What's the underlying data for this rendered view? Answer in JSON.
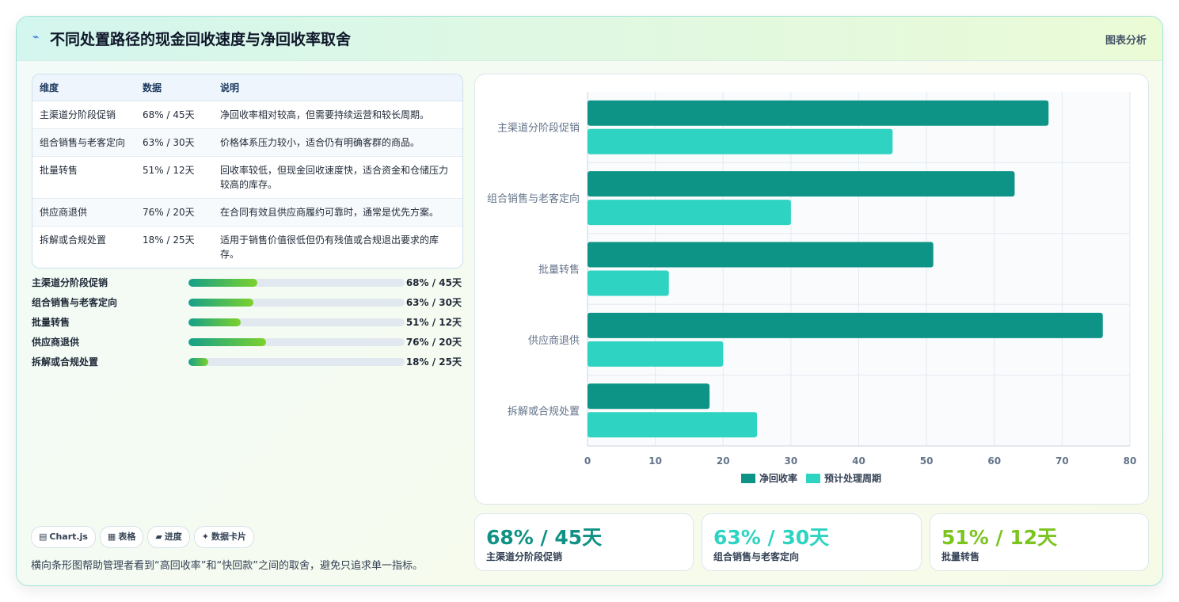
{
  "header": {
    "icon": "lightning-icon",
    "title": "不同处置路径的现金回收速度与净回收率取舍",
    "link": "图表分析"
  },
  "table": {
    "headers": [
      "维度",
      "数据",
      "说明"
    ],
    "rows": [
      [
        "主渠道分阶段促销",
        "68% / 45天",
        "净回收率相对较高，但需要持续运营和较长周期。"
      ],
      [
        "组合销售与老客定向",
        "63% / 30天",
        "价格体系压力较小，适合仍有明确客群的商品。"
      ],
      [
        "批量转售",
        "51% / 12天",
        "回收率较低，但现金回收速度快，适合资金和仓储压力较高的库存。"
      ],
      [
        "供应商退供",
        "76% / 20天",
        "在合同有效且供应商履约可靠时，通常是优先方案。"
      ],
      [
        "拆解或合规处置",
        "18% / 25天",
        "适用于销售价值很低但仍有残值或合规退出要求的库存。"
      ]
    ]
  },
  "progress": [
    {
      "label": "主渠道分阶段促销",
      "value": "68% / 45天",
      "fraction": 0.32
    },
    {
      "label": "组合销售与老客定向",
      "value": "63% / 30天",
      "fraction": 0.3
    },
    {
      "label": "批量转售",
      "value": "51% / 12天",
      "fraction": 0.24
    },
    {
      "label": "供应商退供",
      "value": "76% / 20天",
      "fraction": 0.36
    },
    {
      "label": "拆解或合规处置",
      "value": "18% / 25天",
      "fraction": 0.09
    }
  ],
  "chips": [
    {
      "icon": "chart-icon",
      "glyph": "▤",
      "label": "Chart.js"
    },
    {
      "icon": "table-icon",
      "glyph": "▦",
      "label": "表格"
    },
    {
      "icon": "folder-icon",
      "glyph": "▰",
      "label": "进度"
    },
    {
      "icon": "sparkle-icon",
      "glyph": "✦",
      "label": "数据卡片"
    }
  ],
  "footnote": "横向条形图帮助管理者看到“高回收率”和“快回款”之间的取舍，避免只追求单一指标。",
  "stats": [
    {
      "value": "68% / 45天",
      "label": "主渠道分阶段促销",
      "color": "#0f9184"
    },
    {
      "value": "63% / 30天",
      "label": "组合销售与老客定向",
      "color": "#2ed3c1"
    },
    {
      "value": "51% / 12天",
      "label": "批量转售",
      "color": "#7cc41f"
    }
  ],
  "chart_data": {
    "type": "bar",
    "orientation": "horizontal",
    "categories": [
      "主渠道分阶段促销",
      "组合销售与老客定向",
      "批量转售",
      "供应商退供",
      "拆解或合规处置"
    ],
    "series": [
      {
        "name": "净回收率",
        "values": [
          68,
          63,
          51,
          76,
          18
        ],
        "color": "#0e9486"
      },
      {
        "name": "预计处理周期",
        "values": [
          45,
          30,
          12,
          20,
          25
        ],
        "color": "#2fd3c2"
      }
    ],
    "xlim": [
      0,
      80
    ],
    "xticks": [
      0,
      10,
      20,
      30,
      40,
      50,
      60,
      70,
      80
    ],
    "grid": true,
    "legend": "bottom"
  }
}
